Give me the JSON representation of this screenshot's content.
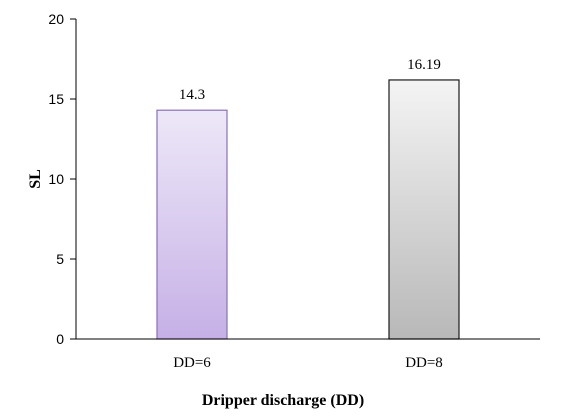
{
  "chart_data": {
    "type": "bar",
    "categories": [
      "DD=6",
      "DD=8"
    ],
    "values": [
      14.3,
      16.19
    ],
    "data_labels": [
      "14.3",
      "16.19"
    ],
    "title": "",
    "xlabel": "Dripper discharge (DD)",
    "ylabel": "SL",
    "ylim": [
      0,
      20
    ],
    "yticks": [
      0,
      5,
      10,
      15,
      20
    ],
    "ytick_labels": [
      "0",
      "5",
      "10",
      "15",
      "20"
    ],
    "grid": false,
    "legend": "none",
    "bar_colors": [
      {
        "top": "#ede8f8",
        "bottom": "#c6b0e6",
        "stroke": "#8a70b8"
      },
      {
        "top": "#f4f4f4",
        "bottom": "#b8b8b8",
        "stroke": "#1a1a1a"
      }
    ]
  }
}
